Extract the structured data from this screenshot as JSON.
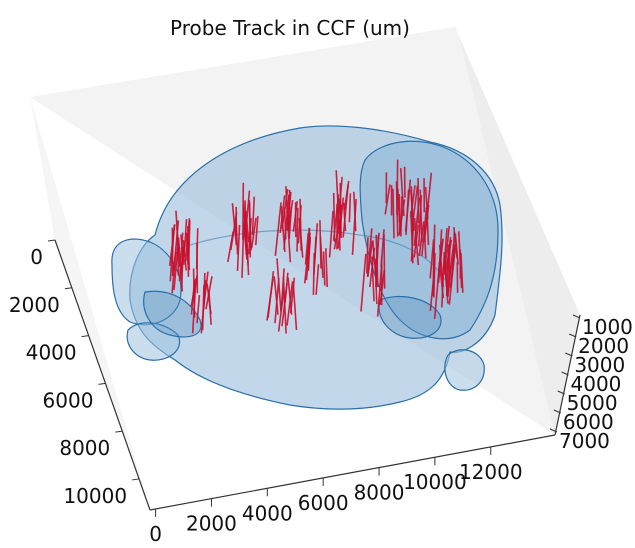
{
  "chart_data": {
    "type": "3d-line",
    "title": "Probe Track in CCF (um)",
    "xlabel": "",
    "ylabel": "",
    "zlabel": "",
    "x_ticks": [
      "0",
      "2000",
      "4000",
      "6000",
      "8000",
      "10000",
      "12000"
    ],
    "y_ticks": [
      "0",
      "2000",
      "4000",
      "6000",
      "8000",
      "10000"
    ],
    "z_ticks": [
      "1000",
      "2000",
      "3000",
      "4000",
      "5000",
      "6000",
      "7000"
    ],
    "xlim": [
      0,
      13200
    ],
    "ylim": [
      0,
      11400
    ],
    "zlim": [
      0,
      8000
    ],
    "grid": false,
    "series": [
      {
        "values": "probe tracks",
        "color": "#c8102e"
      },
      {
        "values": "brain surface mesh",
        "color": "#1f77b4"
      }
    ]
  }
}
